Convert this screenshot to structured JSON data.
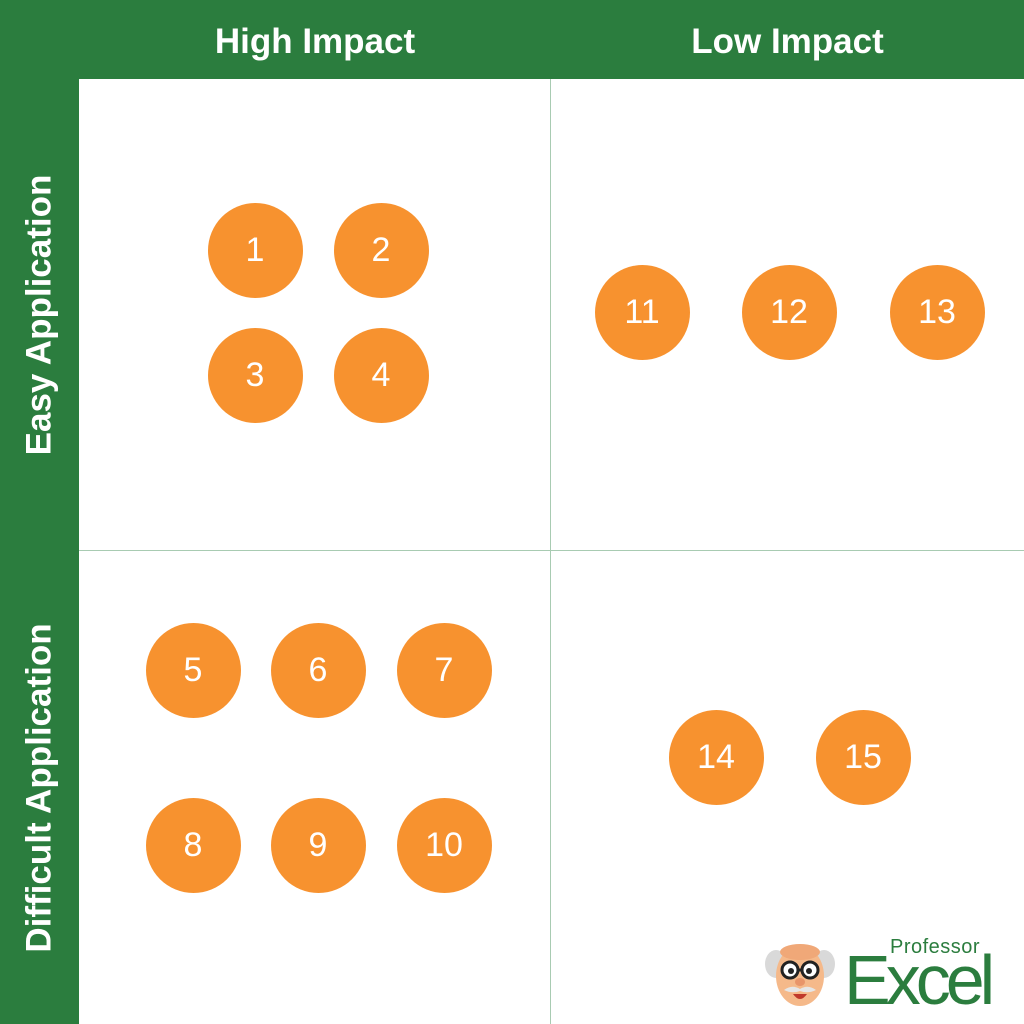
{
  "headers": {
    "columns": [
      "High Impact",
      "Low Impact"
    ],
    "rows": [
      "Easy Application",
      "Difficult Application"
    ]
  },
  "quadrants": {
    "high_easy": [
      "1",
      "2",
      "3",
      "4"
    ],
    "low_easy": [
      "11",
      "12",
      "13"
    ],
    "high_difficult": [
      "5",
      "6",
      "7",
      "8",
      "9",
      "10"
    ],
    "low_difficult": [
      "14",
      "15"
    ]
  },
  "logo": {
    "small_text": "Professor",
    "large_text": "Excel"
  },
  "colors": {
    "header_green": "#2b7d3e",
    "dot_orange": "#f7922f",
    "divider": "#a8cbb2"
  }
}
